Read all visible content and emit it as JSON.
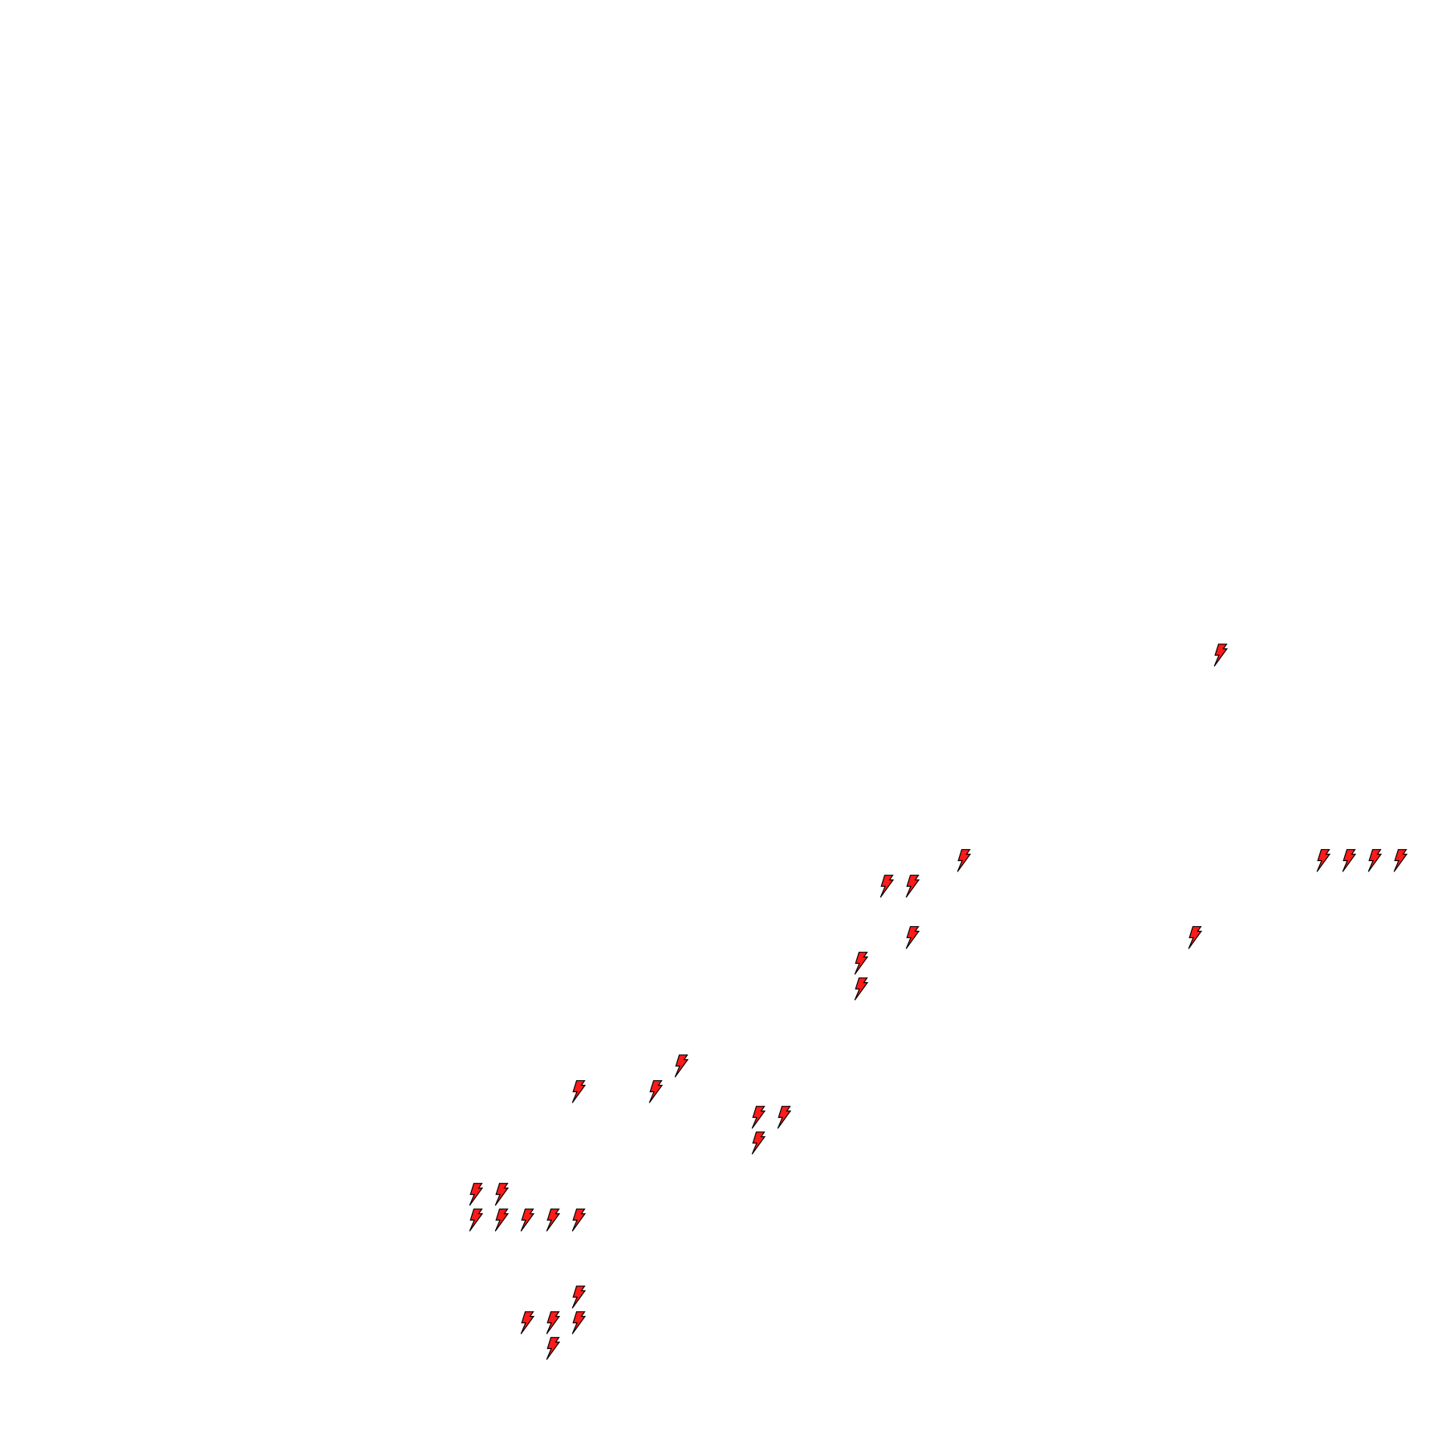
{
  "canvas": {
    "background": "#ffffff",
    "icon": {
      "name": "lightning-bolt-icon",
      "fill": "#ff1a1a",
      "stroke": "#000000"
    }
  }
}
